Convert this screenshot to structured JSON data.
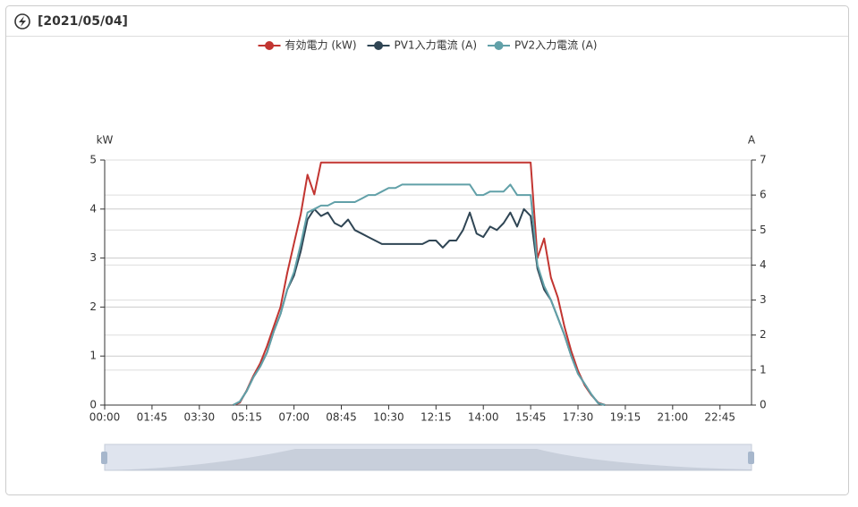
{
  "header": {
    "title": "[2021/05/04]"
  },
  "chart_data": {
    "type": "line",
    "y_label": "kW",
    "y2_label": "A",
    "x": [
      285,
      300,
      315,
      330,
      345,
      360,
      375,
      390,
      405,
      420,
      435,
      450,
      465,
      480,
      495,
      510,
      525,
      540,
      555,
      570,
      585,
      600,
      615,
      630,
      645,
      660,
      675,
      690,
      705,
      720,
      735,
      750,
      765,
      780,
      795,
      810,
      825,
      840,
      855,
      870,
      885,
      900,
      915,
      930,
      945,
      960,
      975,
      990,
      1005,
      1020,
      1035,
      1050,
      1065,
      1080,
      1095,
      1110
    ],
    "xlim": [
      0,
      1435
    ],
    "xticks": [
      {
        "value": 0,
        "label": "00:00"
      },
      {
        "value": 105,
        "label": "01:45"
      },
      {
        "value": 210,
        "label": "03:30"
      },
      {
        "value": 315,
        "label": "05:15"
      },
      {
        "value": 420,
        "label": "07:00"
      },
      {
        "value": 525,
        "label": "08:45"
      },
      {
        "value": 630,
        "label": "10:30"
      },
      {
        "value": 735,
        "label": "12:15"
      },
      {
        "value": 840,
        "label": "14:00"
      },
      {
        "value": 945,
        "label": "15:45"
      },
      {
        "value": 1050,
        "label": "17:30"
      },
      {
        "value": 1155,
        "label": "19:15"
      },
      {
        "value": 1260,
        "label": "21:00"
      },
      {
        "value": 1365,
        "label": "22:45"
      }
    ],
    "ylim": [
      0,
      5
    ],
    "yticks": [
      0,
      1,
      2,
      3,
      4,
      5
    ],
    "y2lim": [
      0,
      7
    ],
    "y2ticks": [
      0,
      1,
      2,
      3,
      4,
      5,
      6,
      7
    ],
    "grid": true,
    "legend": "top",
    "series": [
      {
        "name": "有効電力 (kW)",
        "color": "#c23531",
        "values": [
          0,
          0.05,
          0.3,
          0.6,
          0.85,
          1.2,
          1.6,
          2.0,
          2.7,
          3.3,
          3.9,
          4.7,
          4.3,
          4.95,
          4.95,
          4.95,
          4.95,
          4.95,
          4.95,
          4.95,
          4.95,
          4.95,
          4.95,
          4.95,
          4.95,
          4.95,
          4.95,
          4.95,
          4.95,
          4.95,
          4.95,
          4.95,
          4.95,
          4.95,
          4.95,
          4.95,
          4.95,
          4.95,
          4.95,
          4.95,
          4.95,
          4.95,
          4.95,
          4.95,
          4.95,
          3.0,
          3.4,
          2.6,
          2.2,
          1.6,
          1.1,
          0.7,
          0.4,
          0.2,
          0.05,
          0
        ]
      },
      {
        "name": "PV1入力電流 (A)",
        "color": "#2f4554",
        "axis": "y2",
        "values": [
          0,
          0.1,
          0.4,
          0.8,
          1.1,
          1.5,
          2.1,
          2.6,
          3.3,
          3.7,
          4.4,
          5.3,
          5.6,
          5.4,
          5.5,
          5.2,
          5.1,
          5.3,
          5.0,
          4.9,
          4.8,
          4.7,
          4.6,
          4.6,
          4.6,
          4.6,
          4.6,
          4.6,
          4.6,
          4.7,
          4.7,
          4.5,
          4.7,
          4.7,
          5.0,
          5.5,
          4.9,
          4.8,
          5.1,
          5.0,
          5.2,
          5.5,
          5.1,
          5.6,
          5.4,
          3.9,
          3.3,
          3.0,
          2.5,
          2.0,
          1.4,
          0.9,
          0.6,
          0.3,
          0.05,
          0
        ]
      },
      {
        "name": "PV2入力電流 (A)",
        "color": "#61a0a8",
        "axis": "y2",
        "values": [
          0,
          0.1,
          0.4,
          0.8,
          1.1,
          1.5,
          2.1,
          2.6,
          3.3,
          3.8,
          4.6,
          5.5,
          5.6,
          5.7,
          5.7,
          5.8,
          5.8,
          5.8,
          5.8,
          5.9,
          6.0,
          6.0,
          6.1,
          6.2,
          6.2,
          6.3,
          6.3,
          6.3,
          6.3,
          6.3,
          6.3,
          6.3,
          6.3,
          6.3,
          6.3,
          6.3,
          6.0,
          6.0,
          6.1,
          6.1,
          6.1,
          6.3,
          6.0,
          6.0,
          6.0,
          4.0,
          3.4,
          3.0,
          2.5,
          2.0,
          1.4,
          0.9,
          0.6,
          0.3,
          0.05,
          0
        ]
      }
    ]
  }
}
